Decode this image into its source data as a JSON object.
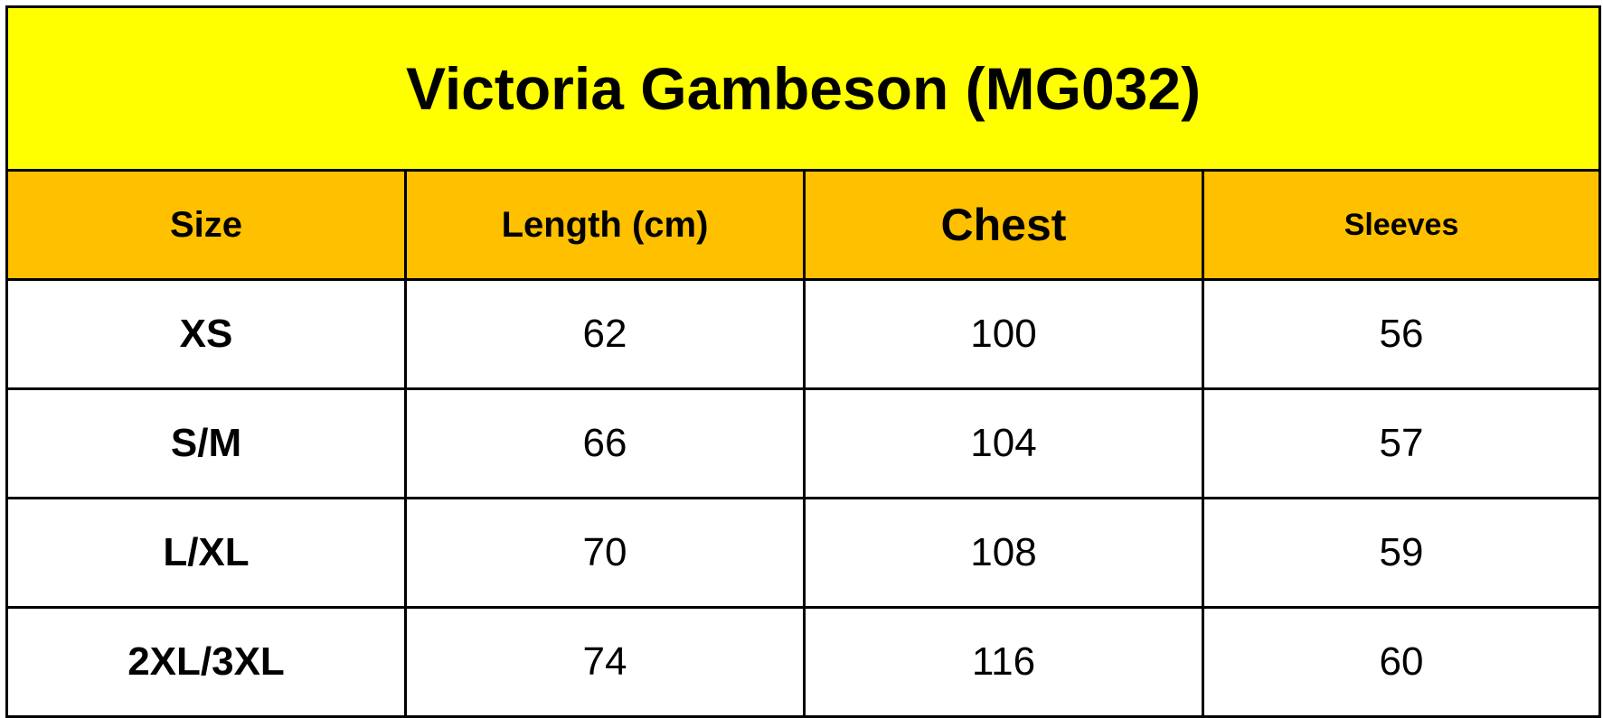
{
  "title": "Victoria Gambeson (MG032)",
  "headers": [
    "Size",
    "Length (cm)",
    "Chest",
    "Sleeves"
  ],
  "rows": [
    [
      "XS",
      "62",
      "100",
      "56"
    ],
    [
      "S/M",
      "66",
      "104",
      "57"
    ],
    [
      "L/XL",
      "70",
      "108",
      "59"
    ],
    [
      "2XL/3XL",
      "74",
      "116",
      "60"
    ]
  ],
  "colors": {
    "title_bg": "#ffff00",
    "header_bg": "#ffc000",
    "border": "#000000"
  }
}
